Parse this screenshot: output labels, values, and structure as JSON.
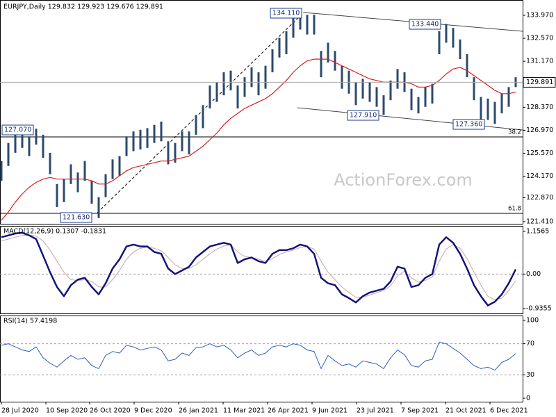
{
  "chart_data": [
    {
      "type": "range",
      "title": "EURJPY,Daily  129.832 129.923 129.676 129.891",
      "color": "#2b4a6b",
      "xlim": [
        0,
        74
      ],
      "ylim": [
        121.28,
        134.9
      ],
      "grid": false,
      "yticks": [
        {
          "value": 133.97,
          "label": "133.970"
        },
        {
          "value": 132.57,
          "label": "132.570"
        },
        {
          "value": 131.17,
          "label": "131.170"
        },
        {
          "value": 128.37,
          "label": "128.370"
        },
        {
          "value": 126.97,
          "label": "126.970"
        },
        {
          "value": 125.57,
          "label": "125.570"
        },
        {
          "value": 124.17,
          "label": "124.170"
        },
        {
          "value": 122.87,
          "label": "122.870"
        },
        {
          "value": 121.41,
          "label": "121.410"
        }
      ],
      "last_price": {
        "value": 129.891,
        "label": "129.891"
      },
      "high": [
        125.1,
        126.2,
        127.0,
        127.1,
        126.6,
        127.07,
        126.7,
        125.6,
        123.7,
        124.0,
        124.9,
        124.4,
        125.1,
        123.9,
        122.9,
        124.3,
        125.2,
        125.4,
        126.6,
        126.9,
        127.0,
        127.1,
        127.3,
        127.5,
        126.3,
        126.2,
        126.9,
        126.9,
        127.9,
        128.5,
        129.7,
        129.9,
        130.5,
        130.6,
        129.7,
        130.2,
        130.8,
        130.5,
        130.9,
        131.9,
        132.6,
        133.0,
        133.8,
        134.11,
        134.0,
        134.0,
        131.8,
        132.3,
        131.8,
        130.9,
        130.6,
        129.9,
        130.1,
        129.9,
        129.6,
        129.1,
        130.0,
        130.7,
        130.5,
        129.5,
        129.0,
        129.6,
        129.8,
        133.0,
        133.44,
        133.2,
        132.5,
        131.6,
        130.2,
        129.0,
        128.9,
        128.7,
        129.2,
        129.6,
        130.2
      ],
      "low": [
        123.9,
        124.8,
        125.6,
        125.9,
        125.4,
        126.1,
        125.3,
        124.3,
        122.3,
        122.6,
        123.7,
        123.2,
        123.9,
        122.5,
        121.63,
        122.9,
        124.0,
        124.2,
        125.4,
        125.7,
        125.8,
        125.9,
        126.2,
        126.3,
        124.9,
        125.0,
        125.7,
        125.5,
        126.7,
        127.1,
        128.3,
        128.7,
        129.1,
        129.4,
        128.3,
        129.0,
        129.6,
        129.1,
        129.5,
        130.5,
        131.4,
        131.6,
        132.6,
        133.1,
        132.8,
        132.8,
        130.2,
        131.1,
        130.6,
        129.5,
        129.2,
        128.5,
        128.9,
        128.7,
        128.4,
        127.91,
        128.8,
        129.5,
        129.3,
        128.2,
        128.0,
        128.4,
        128.6,
        131.6,
        132.3,
        132.0,
        131.3,
        130.2,
        128.8,
        127.6,
        127.6,
        127.36,
        128.0,
        128.4,
        129.6
      ],
      "series": [
        {
          "color": "#d42020",
          "values": [
            121.5,
            122.0,
            122.6,
            123.1,
            123.5,
            123.8,
            124.0,
            124.1,
            124.0,
            124.0,
            124.0,
            124.0,
            124.0,
            123.9,
            123.7,
            123.7,
            123.9,
            124.2,
            124.5,
            124.7,
            124.8,
            124.9,
            125.0,
            125.1,
            125.1,
            125.2,
            125.3,
            125.4,
            125.7,
            126.0,
            126.4,
            126.8,
            127.3,
            127.7,
            128.0,
            128.3,
            128.5,
            128.7,
            128.9,
            129.2,
            129.6,
            130.0,
            130.5,
            130.9,
            131.2,
            131.3,
            131.3,
            131.3,
            131.1,
            130.9,
            130.7,
            130.5,
            130.3,
            130.1,
            130.0,
            129.9,
            129.9,
            129.9,
            129.9,
            129.8,
            129.6,
            129.6,
            129.7,
            130.0,
            130.4,
            130.7,
            130.8,
            130.6,
            130.3,
            130.0,
            129.7,
            129.4,
            129.2,
            129.2,
            129.3
          ]
        }
      ],
      "annotations": [
        "134.110",
        "133.440",
        "127.910",
        "127.360",
        "127.070",
        "121.630"
      ],
      "fib_labels": [
        "38.2",
        "61.8"
      ],
      "watermark": "ActionForex.com"
    },
    {
      "type": "line",
      "title": "MACD(12,26,9) 0.1307 -0.1831",
      "xlim": [
        0,
        74
      ],
      "ylim": [
        -0.9355,
        1.1565
      ],
      "grid": true,
      "yticks": [
        1.1565,
        {
          "value": 0,
          "label": "0.00"
        },
        -0.9355
      ],
      "series": [
        {
          "color": "#c9a6a6",
          "width": 1,
          "values": [
            0.9,
            0.95,
            1.0,
            1.05,
            1.06,
            1.03,
            0.9,
            0.65,
            0.35,
            0.05,
            -0.15,
            -0.18,
            -0.15,
            -0.2,
            -0.35,
            -0.35,
            -0.15,
            0.1,
            0.4,
            0.6,
            0.7,
            0.73,
            0.7,
            0.63,
            0.45,
            0.25,
            0.15,
            0.15,
            0.25,
            0.4,
            0.55,
            0.68,
            0.76,
            0.8,
            0.6,
            0.48,
            0.45,
            0.4,
            0.35,
            0.42,
            0.53,
            0.6,
            0.65,
            0.72,
            0.75,
            0.68,
            0.35,
            0.05,
            -0.15,
            -0.35,
            -0.5,
            -0.63,
            -0.63,
            -0.57,
            -0.5,
            -0.45,
            -0.32,
            -0.05,
            0.08,
            -0.1,
            -0.22,
            -0.17,
            -0.08,
            0.35,
            0.68,
            0.8,
            0.7,
            0.42,
            0.05,
            -0.3,
            -0.6,
            -0.7,
            -0.65,
            -0.45,
            -0.18
          ]
        },
        {
          "color": "#14147a",
          "width": 2.5,
          "values": [
            1.0,
            1.05,
            1.1,
            1.12,
            1.05,
            0.95,
            0.5,
            0.05,
            -0.35,
            -0.6,
            -0.3,
            -0.15,
            -0.1,
            -0.35,
            -0.55,
            -0.25,
            0.15,
            0.4,
            0.75,
            0.8,
            0.75,
            0.75,
            0.6,
            0.55,
            0.15,
            0.0,
            0.1,
            0.2,
            0.45,
            0.6,
            0.75,
            0.8,
            0.85,
            0.8,
            0.3,
            0.4,
            0.45,
            0.35,
            0.3,
            0.55,
            0.65,
            0.65,
            0.7,
            0.8,
            0.75,
            0.55,
            -0.1,
            -0.25,
            -0.3,
            -0.55,
            -0.65,
            -0.77,
            -0.6,
            -0.5,
            -0.45,
            -0.4,
            -0.2,
            0.2,
            0.15,
            -0.35,
            -0.3,
            -0.1,
            0.0,
            0.8,
            1.0,
            0.85,
            0.55,
            0.15,
            -0.3,
            -0.6,
            -0.85,
            -0.75,
            -0.55,
            -0.25,
            0.13
          ]
        }
      ]
    },
    {
      "type": "line",
      "title": "RSI(14) 57.4198",
      "xlim": [
        0,
        74
      ],
      "ylim": [
        0,
        100
      ],
      "grid": true,
      "yticks": [
        100,
        70,
        30,
        0
      ],
      "xticks": [
        {
          "value": 0,
          "label": "28 Jul 2020"
        },
        {
          "value": 6.4,
          "label": "10 Sep 2020"
        },
        {
          "value": 12.7,
          "label": "26 Oct 2020"
        },
        {
          "value": 19.1,
          "label": "9 Dec 2020"
        },
        {
          "value": 25.5,
          "label": "26 Jan 2021"
        },
        {
          "value": 31.9,
          "label": "11 Mar 2021"
        },
        {
          "value": 38.3,
          "label": "26 Apr 2021"
        },
        {
          "value": 44.7,
          "label": "9 Jun 2021"
        },
        {
          "value": 51.1,
          "label": "23 Jul 2021"
        },
        {
          "value": 57.5,
          "label": "7 Sep 2021"
        },
        {
          "value": 63.9,
          "label": "21 Oct 2021"
        },
        {
          "value": 70.3,
          "label": "6 Dec 2021"
        }
      ],
      "series": [
        {
          "color": "#2f5fc0",
          "width": 1,
          "values": [
            68,
            70,
            66,
            62,
            60,
            66,
            52,
            45,
            40,
            48,
            55,
            50,
            52,
            42,
            38,
            55,
            60,
            58,
            68,
            66,
            62,
            64,
            66,
            62,
            48,
            50,
            58,
            55,
            65,
            66,
            70,
            66,
            68,
            62,
            52,
            58,
            62,
            55,
            58,
            66,
            68,
            66,
            70,
            68,
            62,
            60,
            38,
            55,
            48,
            42,
            44,
            40,
            48,
            46,
            44,
            38,
            52,
            62,
            56,
            42,
            40,
            48,
            50,
            72,
            70,
            64,
            58,
            50,
            42,
            38,
            40,
            36,
            46,
            50,
            57.4198
          ]
        }
      ]
    }
  ]
}
